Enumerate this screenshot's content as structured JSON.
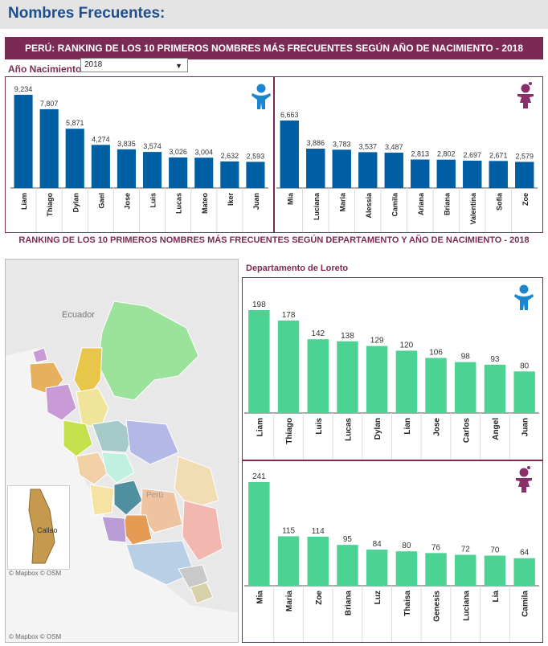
{
  "page": {
    "title": "Nombres Frecuentes:",
    "banner": "PERÚ: RANKING DE LOS 10 PRIMEROS NOMBRES MÁS FRECUENTES SEGÚN AÑO DE NACIMIENTO - 2018",
    "year_label": "Año Nacimiento",
    "year_value": "2018",
    "section2_title": "RANKING DE LOS 10 PRIMEROS NOMBRES MÁS FRECUENTES SEGÚN DEPARTAMENTO Y AÑO DE NACIMIENTO -  2018",
    "dept_label": "Departamento de Loreto",
    "map_country_label": "Ecuador",
    "map_peru_label": "Perú",
    "map_callao_label": "Callao",
    "map_attribution": "© Mapbox © OSM"
  },
  "colors": {
    "boy_bar": "#005fa3",
    "dept_bar": "#4cd393",
    "accent": "#7b2a54",
    "boy_icon": "#1a86d0",
    "girl_icon": "#8b2f6a"
  },
  "chart_data": [
    {
      "type": "bar",
      "id": "peru-boys",
      "categories": [
        "Liam",
        "Thiago",
        "Dylan",
        "Gael",
        "Jose",
        "Luis",
        "Lucas",
        "Mateo",
        "Iker",
        "Juan"
      ],
      "values": [
        9234,
        7807,
        5871,
        4274,
        3835,
        3574,
        3026,
        3004,
        2632,
        2593
      ],
      "labels": [
        "9,234",
        "7,807",
        "5,871",
        "4,274",
        "3,835",
        "3,574",
        "3,026",
        "3,004",
        "2,632",
        "2,593"
      ],
      "icon": "boy-icon"
    },
    {
      "type": "bar",
      "id": "peru-girls",
      "categories": [
        "Mia",
        "Luciana",
        "Maria",
        "Alessia",
        "Camila",
        "Ariana",
        "Briana",
        "Valentina",
        "Sofia",
        "Zoe"
      ],
      "values": [
        6663,
        3886,
        3783,
        3537,
        3487,
        2813,
        2802,
        2697,
        2671,
        2579
      ],
      "labels": [
        "6,663",
        "3,886",
        "3,783",
        "3,537",
        "3,487",
        "2,813",
        "2,802",
        "2,697",
        "2,671",
        "2,579"
      ],
      "icon": "girl-icon"
    },
    {
      "type": "bar",
      "id": "loreto-boys",
      "categories": [
        "Liam",
        "Thiago",
        "Luis",
        "Lucas",
        "Dylan",
        "Lian",
        "Jose",
        "Carlos",
        "Angel",
        "Juan"
      ],
      "values": [
        198,
        178,
        142,
        138,
        129,
        120,
        106,
        98,
        93,
        80
      ],
      "labels": [
        "198",
        "178",
        "142",
        "138",
        "129",
        "120",
        "106",
        "98",
        "93",
        "80"
      ],
      "icon": "boy-icon"
    },
    {
      "type": "bar",
      "id": "loreto-girls",
      "categories": [
        "Mia",
        "Maria",
        "Zoe",
        "Briana",
        "Luz",
        "Thaisa",
        "Genesis",
        "Luciana",
        "Lia",
        "Camila"
      ],
      "values": [
        241,
        115,
        114,
        95,
        84,
        80,
        76,
        72,
        70,
        64
      ],
      "labels": [
        "241",
        "115",
        "114",
        "95",
        "84",
        "80",
        "76",
        "72",
        "70",
        "64"
      ],
      "icon": "girl-icon"
    }
  ]
}
